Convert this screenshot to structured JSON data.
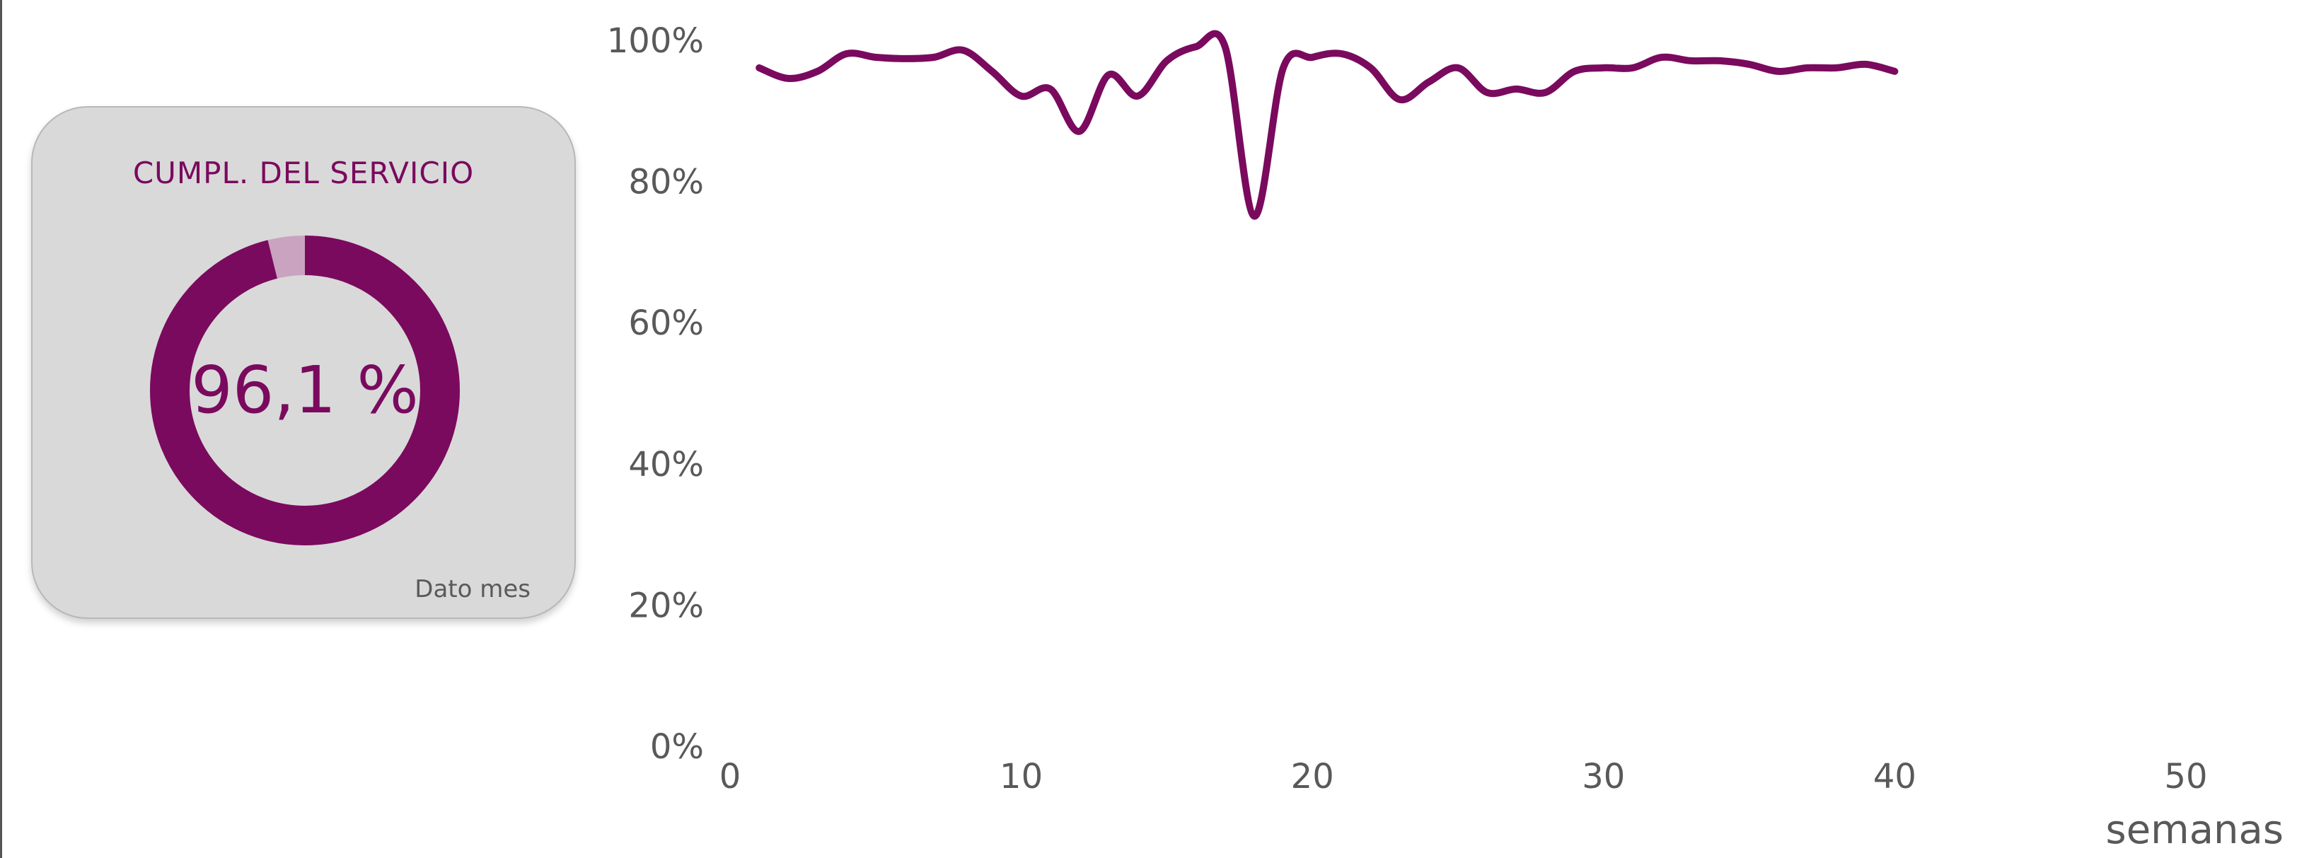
{
  "kpi": {
    "title": "CUMPL. DEL SERVICIO",
    "value_text": "96,1 %",
    "value": 96.1,
    "note": "Dato mes",
    "accent_color": "#7a0a5e",
    "remainder_color": "#c9a3bf",
    "card_color": "#d9d9d9"
  },
  "chart_data": {
    "type": "line",
    "xlabel": "semanas",
    "ylabel": "",
    "xlim": [
      0,
      50
    ],
    "ylim": [
      0,
      100
    ],
    "x_ticks": [
      0,
      10,
      20,
      30,
      40,
      50
    ],
    "y_ticks": [
      0,
      20,
      40,
      60,
      80,
      100
    ],
    "x_tick_labels": [
      "0",
      "10",
      "20",
      "30",
      "40",
      "50"
    ],
    "y_tick_labels": [
      "0%",
      "20%",
      "40%",
      "60%",
      "80%",
      "100%"
    ],
    "grid": false,
    "series": [
      {
        "color": "#7a0a5e",
        "x": [
          1,
          2,
          3,
          4,
          5,
          6,
          7,
          8,
          9,
          10,
          11,
          12,
          13,
          14,
          15,
          16,
          17,
          18,
          19,
          20,
          21,
          22,
          23,
          24,
          25,
          26,
          27,
          28,
          29,
          30,
          31,
          32,
          33,
          34,
          35,
          36,
          37,
          38,
          39,
          40
        ],
        "y": [
          96,
          94.5,
          95.5,
          98,
          97.5,
          97.3,
          97.5,
          98.5,
          95.5,
          92,
          93,
          87,
          95,
          92,
          97,
          99,
          99,
          75,
          96,
          97.5,
          98,
          96,
          91.5,
          94,
          96,
          92.5,
          93,
          92.5,
          95.5,
          96,
          96,
          97.5,
          97,
          97,
          96.5,
          95.5,
          96,
          96,
          96.5,
          95.5
        ]
      }
    ]
  }
}
